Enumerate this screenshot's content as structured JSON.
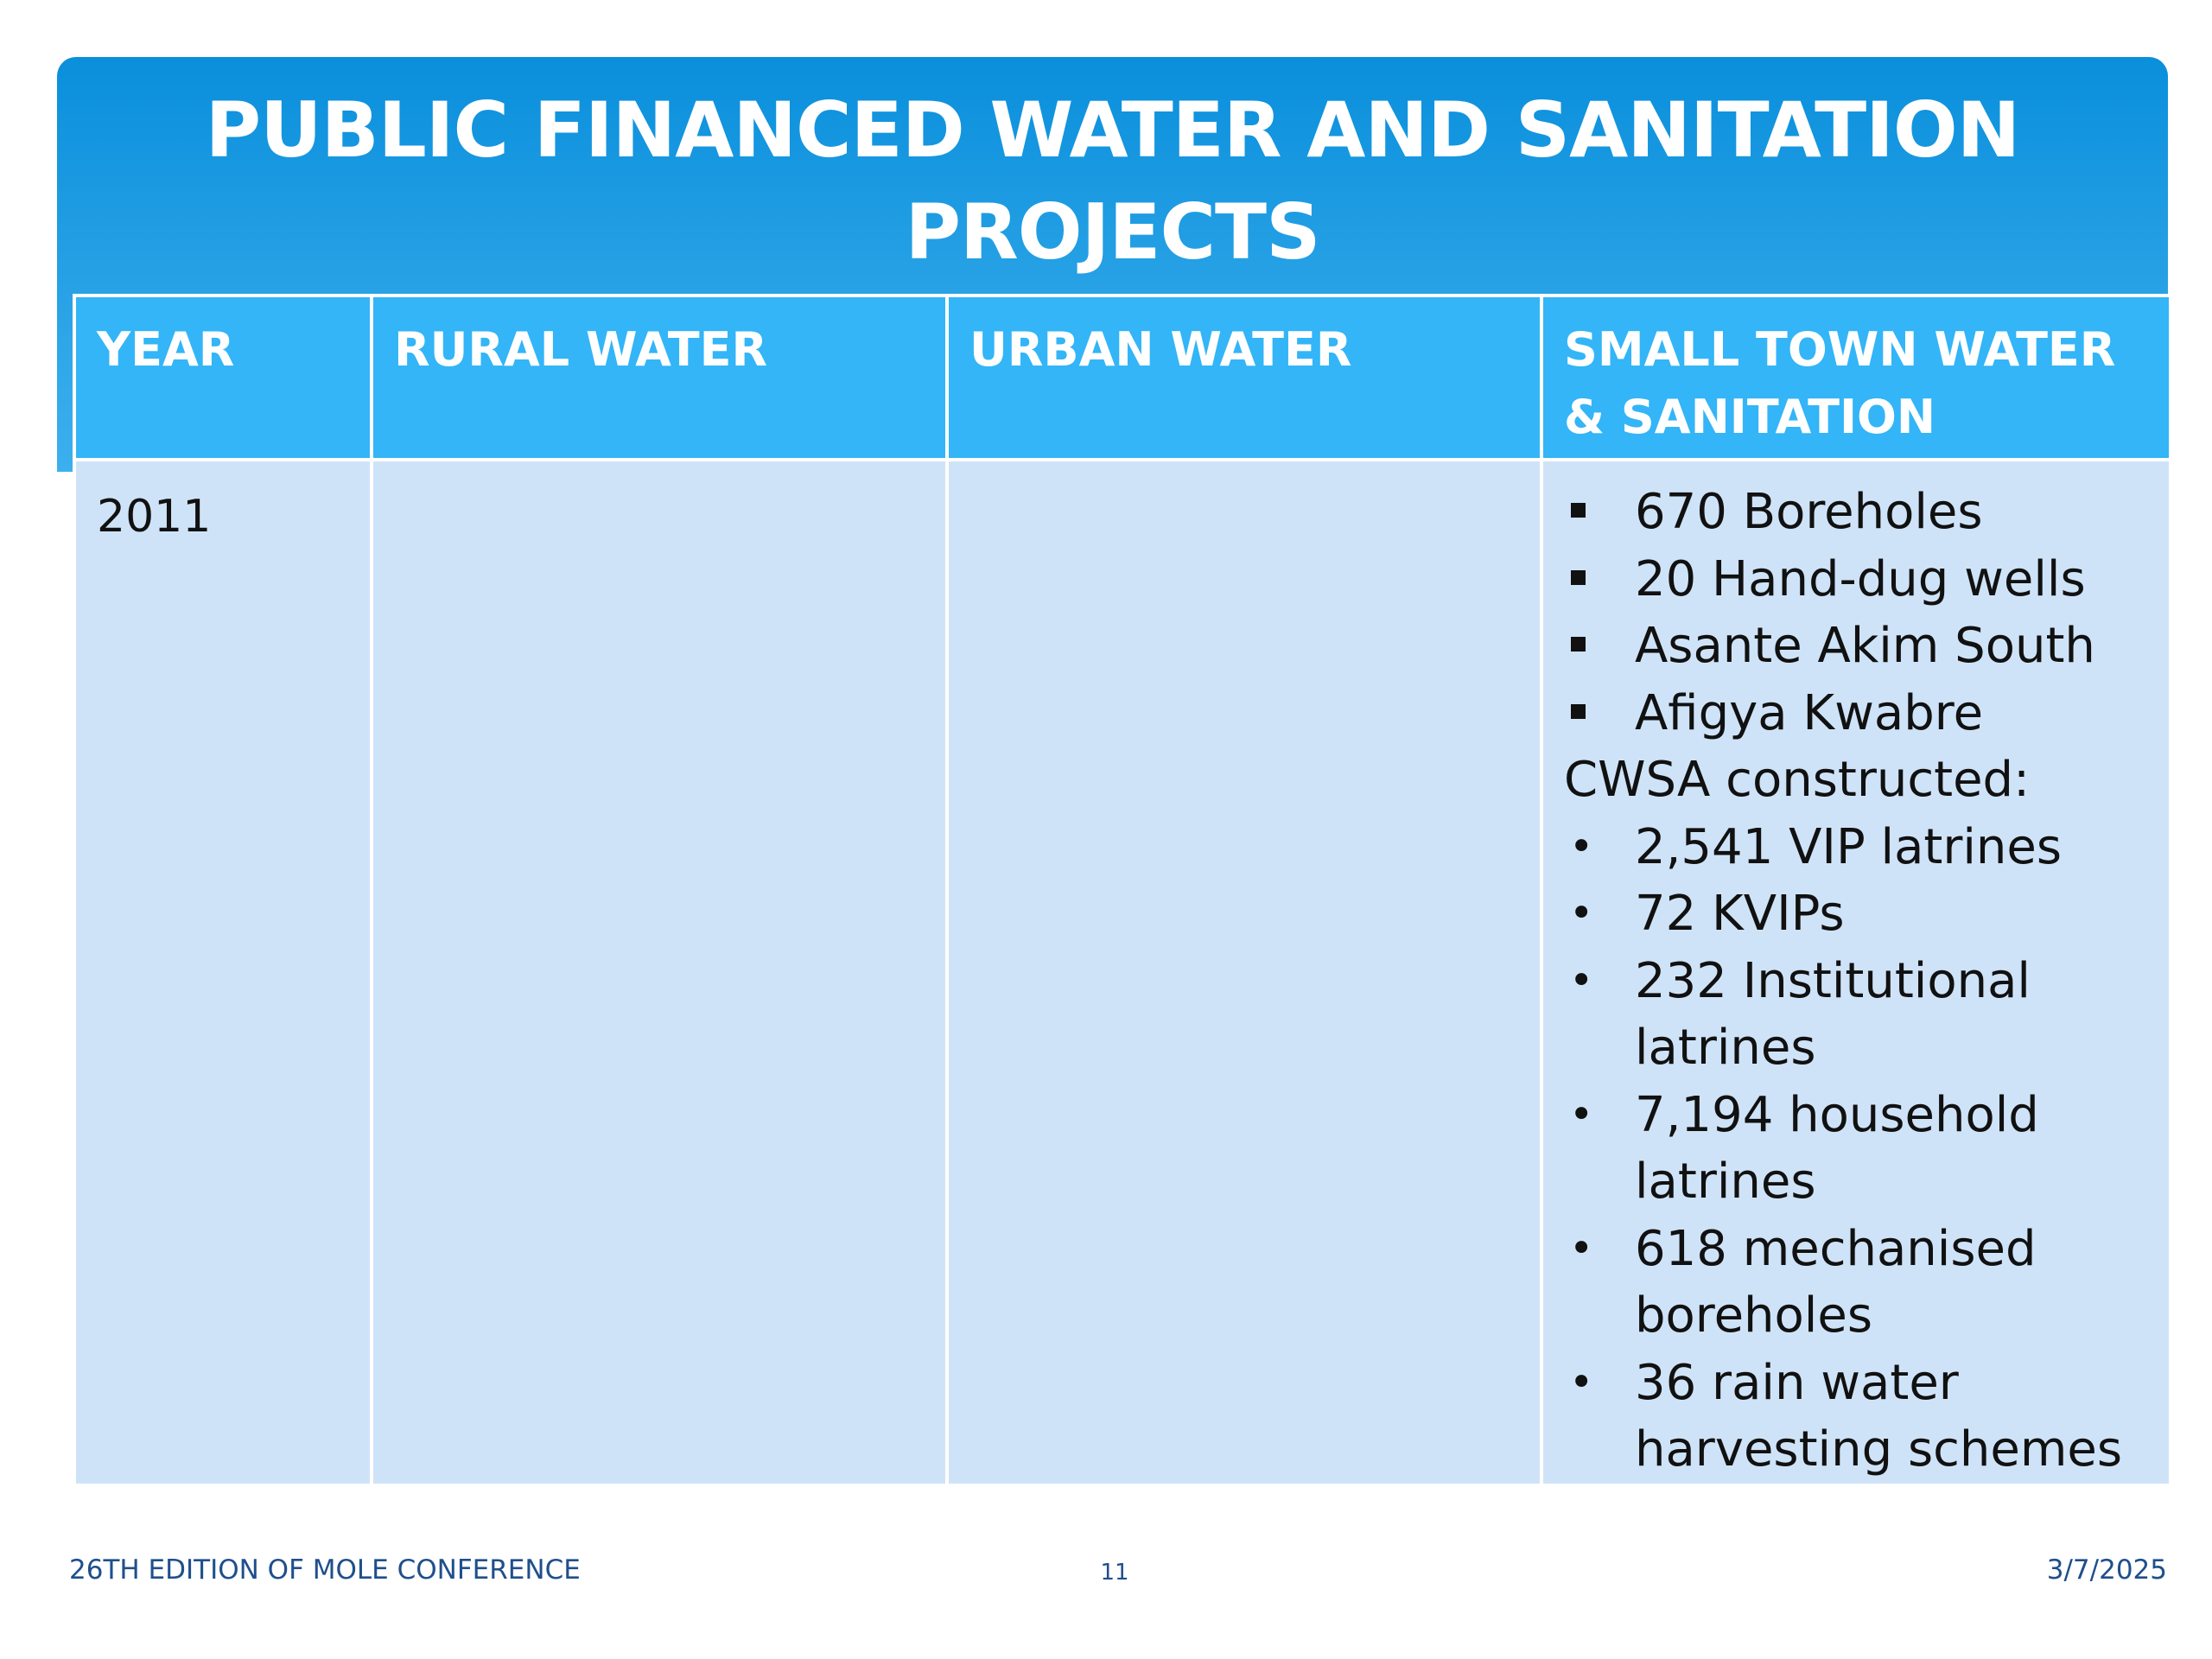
{
  "slide": {
    "title": "PUBLIC FINANCED WATER AND SANITATION PROJECTS",
    "colors": {
      "title_bar": "#0a8fdc",
      "header_row": "#33b5f7",
      "body_cells": "#cfe3f8",
      "footer_text": "#1f4f8c"
    }
  },
  "table": {
    "headers": [
      "YEAR",
      "RURAL WATER",
      "URBAN WATER",
      "SMALL TOWN WATER & SANITATION"
    ],
    "rows": [
      {
        "year": "2011",
        "rural_water": "",
        "urban_water": "",
        "small_town": {
          "square_items": [
            "670 Boreholes",
            "20 Hand-dug wells",
            "Asante Akim South",
            "Afigya Kwabre"
          ],
          "intro": "CWSA constructed:",
          "bullet_items": [
            [
              "2,541 VIP latrines"
            ],
            [
              "72 KVIPs"
            ],
            [
              "232 Institutional",
              "latrines"
            ],
            [
              "7,194 household",
              "latrines"
            ],
            [
              "618 mechanised",
              "boreholes"
            ],
            [
              "36 rain water",
              "harvesting schemes"
            ]
          ]
        }
      }
    ]
  },
  "footer": {
    "left": "26TH EDITION OF MOLE CONFERENCE",
    "page_number": "11",
    "date": "3/7/2025"
  }
}
